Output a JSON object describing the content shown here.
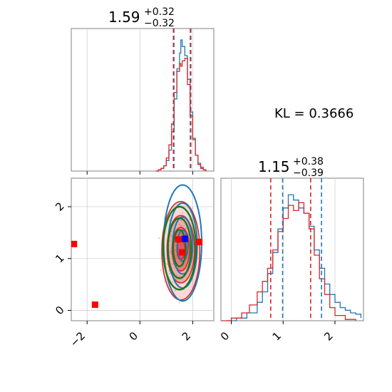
{
  "chart_data": {
    "type": "corner",
    "kl_label": "KL = 0.3666",
    "colors": {
      "blue": "#1f77b4",
      "red": "#d62728",
      "green": "#1a7a1a"
    },
    "param1": {
      "title_main": "1.59",
      "title_plus": "+0.32",
      "title_minus": "−0.32",
      "xlim": [
        -2.6,
        2.8
      ],
      "xticks": [
        -2,
        0,
        2
      ],
      "quantiles_red": [
        1.27,
        1.91
      ],
      "quantiles_blue": [
        1.29,
        1.93
      ],
      "hist_blue": [
        [
          0.6,
          0
        ],
        [
          0.7,
          0.01
        ],
        [
          0.8,
          0.02
        ],
        [
          0.9,
          0.04
        ],
        [
          1.0,
          0.08
        ],
        [
          1.1,
          0.16
        ],
        [
          1.2,
          0.3
        ],
        [
          1.3,
          0.55
        ],
        [
          1.4,
          0.78
        ],
        [
          1.5,
          0.9
        ],
        [
          1.55,
          1.0
        ],
        [
          1.6,
          0.95
        ],
        [
          1.7,
          0.88
        ],
        [
          1.8,
          0.7
        ],
        [
          1.9,
          0.45
        ],
        [
          2.0,
          0.25
        ],
        [
          2.1,
          0.12
        ],
        [
          2.2,
          0.06
        ],
        [
          2.3,
          0.03
        ],
        [
          2.4,
          0.01
        ],
        [
          2.5,
          0
        ]
      ],
      "hist_red": [
        [
          0.6,
          0
        ],
        [
          0.7,
          0.01
        ],
        [
          0.8,
          0.02
        ],
        [
          0.9,
          0.04
        ],
        [
          1.0,
          0.1
        ],
        [
          1.1,
          0.2
        ],
        [
          1.2,
          0.36
        ],
        [
          1.3,
          0.6
        ],
        [
          1.4,
          0.76
        ],
        [
          1.5,
          0.82
        ],
        [
          1.55,
          0.8
        ],
        [
          1.6,
          0.84
        ],
        [
          1.7,
          0.86
        ],
        [
          1.8,
          0.66
        ],
        [
          1.9,
          0.42
        ],
        [
          2.0,
          0.24
        ],
        [
          2.1,
          0.12
        ],
        [
          2.2,
          0.05
        ],
        [
          2.3,
          0.02
        ],
        [
          2.4,
          0.01
        ],
        [
          2.5,
          0
        ]
      ]
    },
    "param2": {
      "title_main": "1.15",
      "title_plus": "+0.38",
      "title_minus": "−0.39",
      "xlim": [
        -0.2,
        2.55
      ],
      "ylim": [
        -0.2,
        2.55
      ],
      "ticks": [
        0,
        1,
        2
      ],
      "quantiles_red": [
        0.76,
        1.53
      ],
      "quantiles_blue": [
        0.99,
        1.74
      ],
      "hist_blue": [
        [
          -0.1,
          0
        ],
        [
          0.1,
          0.02
        ],
        [
          0.3,
          0.06
        ],
        [
          0.5,
          0.14
        ],
        [
          0.6,
          0.22
        ],
        [
          0.7,
          0.36
        ],
        [
          0.8,
          0.52
        ],
        [
          0.9,
          0.7
        ],
        [
          1.0,
          0.86
        ],
        [
          1.1,
          0.96
        ],
        [
          1.2,
          0.92
        ],
        [
          1.3,
          0.86
        ],
        [
          1.4,
          0.82
        ],
        [
          1.5,
          0.72
        ],
        [
          1.6,
          0.54
        ],
        [
          1.7,
          0.4
        ],
        [
          1.8,
          0.28
        ],
        [
          1.9,
          0.2
        ],
        [
          2.0,
          0.14
        ],
        [
          2.1,
          0.1
        ],
        [
          2.2,
          0.08
        ],
        [
          2.3,
          0.06
        ],
        [
          2.4,
          0.05
        ],
        [
          2.5,
          0.02
        ]
      ],
      "hist_red": [
        [
          -0.2,
          0
        ],
        [
          0.0,
          0.02
        ],
        [
          0.2,
          0.06
        ],
        [
          0.35,
          0.12
        ],
        [
          0.5,
          0.22
        ],
        [
          0.6,
          0.3
        ],
        [
          0.7,
          0.4
        ],
        [
          0.8,
          0.54
        ],
        [
          0.9,
          0.68
        ],
        [
          1.0,
          0.78
        ],
        [
          1.1,
          0.88
        ],
        [
          1.2,
          0.84
        ],
        [
          1.3,
          0.9
        ],
        [
          1.4,
          0.82
        ],
        [
          1.5,
          0.7
        ],
        [
          1.6,
          0.5
        ],
        [
          1.7,
          0.32
        ],
        [
          1.8,
          0.2
        ],
        [
          1.9,
          0.1
        ],
        [
          2.0,
          0.04
        ],
        [
          2.2,
          0.01
        ],
        [
          2.4,
          0
        ]
      ]
    },
    "markers": [
      {
        "x": -2.5,
        "y": 1.28,
        "color": "red"
      },
      {
        "x": -1.7,
        "y": 0.11,
        "color": "red"
      },
      {
        "x": 1.45,
        "y": 1.37,
        "color": "red"
      },
      {
        "x": 1.6,
        "y": 1.12,
        "color": "red"
      },
      {
        "x": 2.25,
        "y": 1.32,
        "color": "red"
      },
      {
        "x": 1.7,
        "y": 1.38,
        "color": "blue"
      }
    ],
    "contours_red": [
      {
        "cx": 1.55,
        "cy": 1.18,
        "rx": 0.15,
        "ry": 0.2
      },
      {
        "cx": 1.55,
        "cy": 1.18,
        "rx": 0.33,
        "ry": 0.42
      },
      {
        "cx": 1.55,
        "cy": 1.18,
        "rx": 0.52,
        "ry": 0.65
      },
      {
        "cx": 1.55,
        "cy": 1.15,
        "rx": 0.72,
        "ry": 0.95
      }
    ],
    "contours_blue": [
      {
        "cx": 1.62,
        "cy": 1.25,
        "rx": 0.2,
        "ry": 0.3
      },
      {
        "cx": 1.62,
        "cy": 1.25,
        "rx": 0.38,
        "ry": 0.55
      },
      {
        "cx": 1.62,
        "cy": 1.25,
        "rx": 0.55,
        "ry": 0.82
      },
      {
        "cx": 1.62,
        "cy": 1.3,
        "rx": 0.72,
        "ry": 1.12
      }
    ],
    "contours_green": [
      {
        "cx": 1.5,
        "cy": 1.2,
        "rx": 0.24,
        "ry": 0.35
      },
      {
        "cx": 1.5,
        "cy": 1.2,
        "rx": 0.44,
        "ry": 0.58
      },
      {
        "cx": 1.5,
        "cy": 1.2,
        "rx": 0.62,
        "ry": 0.8
      }
    ]
  }
}
